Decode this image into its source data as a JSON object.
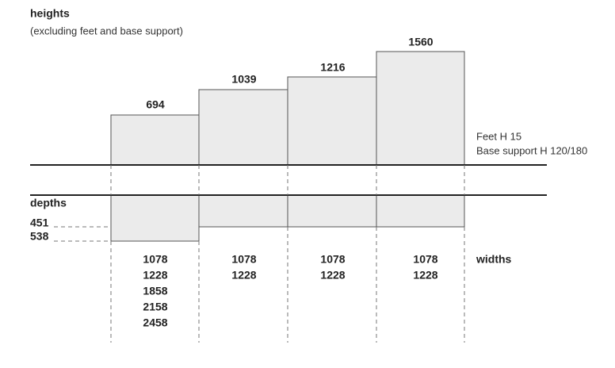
{
  "header": {
    "title": "heights",
    "subtitle": "(excluding feet and base support)"
  },
  "heights": [
    "694",
    "1039",
    "1216",
    "1560"
  ],
  "notes": [
    "Feet H 15",
    "Base support H 120/180"
  ],
  "depths": {
    "title": "depths",
    "values": [
      "451",
      "538"
    ]
  },
  "widths": {
    "title": "widths",
    "columns": [
      [
        "1078",
        "1228",
        "1858",
        "2158",
        "2458"
      ],
      [
        "1078",
        "1228"
      ],
      [
        "1078",
        "1228"
      ],
      [
        "1078",
        "1228"
      ]
    ]
  }
}
